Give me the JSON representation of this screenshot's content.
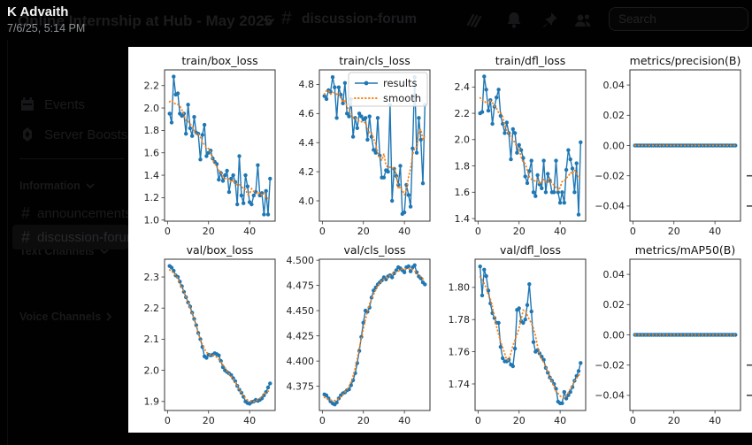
{
  "message": {
    "author": "K Advaith",
    "timestamp": "7/6/25, 5:14 PM"
  },
  "header": {
    "server_name": "Online Internship at Hub - May 2025",
    "channel_hash": "#",
    "channel_name": "discussion-forum",
    "search_placeholder": "Search",
    "icons": [
      "threads-icon",
      "notifications-bell-icon",
      "pin-icon",
      "members-icon"
    ]
  },
  "sidebar": {
    "nav_items": [
      {
        "label": "Events",
        "icon": "calendar-icon"
      },
      {
        "label": "Server Boosts",
        "icon": "boost-icon"
      }
    ],
    "categories": [
      {
        "label": "Information",
        "chevron": "down"
      },
      {
        "label": "Text Channels",
        "chevron": "down"
      },
      {
        "label": "Voice Channels",
        "chevron": "right"
      }
    ],
    "channels": [
      {
        "hash": "#",
        "name": "announcements",
        "selected": false
      },
      {
        "hash": "#",
        "name": "discussion-forum",
        "selected": true
      }
    ]
  },
  "legend": {
    "results_label": "results",
    "smooth_label": "smooth"
  },
  "colors": {
    "results": "#1f77b4",
    "smooth": "#ff7f0e"
  },
  "chart_data": [
    {
      "type": "line",
      "title": "train/box_loss",
      "x_start": 1,
      "xlim": [
        -1.45,
        52.45
      ],
      "ylim": [
        0.99,
        2.34
      ],
      "xticks": [
        "0",
        "20",
        "40"
      ],
      "yticks": [
        "1.0",
        "1.2",
        "1.4",
        "1.6",
        "1.8",
        "2.0",
        "2.2"
      ],
      "legend": false,
      "values": [
        1.95,
        1.87,
        2.28,
        2.12,
        2.13,
        1.95,
        1.93,
        1.95,
        1.77,
        2.03,
        1.82,
        1.75,
        1.92,
        1.78,
        1.77,
        1.54,
        1.76,
        1.85,
        1.57,
        1.6,
        1.62,
        1.55,
        1.52,
        1.5,
        1.36,
        1.42,
        1.35,
        1.4,
        1.44,
        1.25,
        1.37,
        1.4,
        1.34,
        1.14,
        1.57,
        1.22,
        1.15,
        1.4,
        1.3,
        1.16,
        1.14,
        1.22,
        1.25,
        1.49,
        1.22,
        1.24,
        1.05,
        1.26,
        1.05,
        1.37
      ]
    },
    {
      "type": "line",
      "title": "train/cls_loss",
      "x_start": 1,
      "xlim": [
        -1.45,
        52.45
      ],
      "ylim": [
        3.86,
        4.9
      ],
      "xticks": [
        "0",
        "20",
        "40"
      ],
      "yticks": [
        "4.0",
        "4.2",
        "4.4",
        "4.6",
        "4.8"
      ],
      "legend": true,
      "values": [
        4.72,
        4.7,
        4.76,
        4.75,
        4.85,
        4.78,
        4.57,
        4.78,
        4.73,
        4.67,
        4.81,
        4.6,
        4.58,
        4.7,
        4.44,
        4.57,
        4.5,
        4.6,
        4.58,
        4.56,
        4.57,
        4.42,
        4.58,
        4.44,
        4.35,
        4.33,
        4.57,
        4.31,
        4.16,
        4.16,
        4.21,
        4.2,
        4.66,
        4.0,
        4.22,
        4.17,
        4.11,
        4.24,
        3.91,
        3.92,
        4.11,
        4.04,
        3.96,
        4.36,
        4.85,
        4.33,
        4.57,
        4.42,
        4.12,
        4.66
      ]
    },
    {
      "type": "line",
      "title": "train/dfl_loss",
      "x_start": 1,
      "xlim": [
        -1.45,
        52.45
      ],
      "ylim": [
        1.38,
        2.53
      ],
      "xticks": [
        "0",
        "20",
        "40"
      ],
      "yticks": [
        "1.4",
        "1.6",
        "1.8",
        "2.0",
        "2.2",
        "2.4"
      ],
      "legend": false,
      "values": [
        2.2,
        2.21,
        2.48,
        2.38,
        2.22,
        2.3,
        2.12,
        2.25,
        2.32,
        2.38,
        2.18,
        2.12,
        2.05,
        2.13,
        2.05,
        1.85,
        2.08,
        2.05,
        1.9,
        1.96,
        1.92,
        1.86,
        1.72,
        1.67,
        1.76,
        1.84,
        1.6,
        1.57,
        1.73,
        1.66,
        1.63,
        1.84,
        1.6,
        1.74,
        1.69,
        1.6,
        1.6,
        1.84,
        1.6,
        1.52,
        1.6,
        1.52,
        1.77,
        1.92,
        1.85,
        1.78,
        1.6,
        1.82,
        1.43,
        1.98
      ]
    },
    {
      "type": "line",
      "title": "metrics/precision(B)",
      "x_start": 1,
      "xlim": [
        -1.45,
        52.45
      ],
      "ylim": [
        -0.05,
        0.05
      ],
      "xticks": [
        "0",
        "20",
        "40"
      ],
      "yticks": [
        "−0.04",
        "−0.02",
        "0.00",
        "0.02",
        "0.04"
      ],
      "legend": false,
      "values": [
        0,
        0,
        0,
        0,
        0,
        0,
        0,
        0,
        0,
        0,
        0,
        0,
        0,
        0,
        0,
        0,
        0,
        0,
        0,
        0,
        0,
        0,
        0,
        0,
        0,
        0,
        0,
        0,
        0,
        0,
        0,
        0,
        0,
        0,
        0,
        0,
        0,
        0,
        0,
        0,
        0,
        0,
        0,
        0,
        0,
        0,
        0,
        0,
        0,
        0
      ]
    },
    {
      "type": "line",
      "title": "val/box_loss",
      "x_start": 1,
      "xlim": [
        -1.45,
        52.45
      ],
      "ylim": [
        1.871,
        2.357
      ],
      "xticks": [
        "0",
        "20",
        "40"
      ],
      "yticks": [
        "1.9",
        "2.0",
        "2.1",
        "2.2",
        "2.3"
      ],
      "legend": false,
      "values": [
        2.335,
        2.33,
        2.32,
        2.305,
        2.3,
        2.285,
        2.27,
        2.252,
        2.235,
        2.218,
        2.205,
        2.185,
        2.165,
        2.145,
        2.12,
        2.1,
        2.075,
        2.045,
        2.04,
        2.05,
        2.048,
        2.05,
        2.055,
        2.052,
        2.048,
        2.03,
        2.01,
        2.0,
        1.995,
        1.99,
        1.985,
        1.975,
        1.965,
        1.95,
        1.938,
        1.928,
        1.915,
        1.9,
        1.895,
        1.893,
        1.898,
        1.9,
        1.905,
        1.902,
        1.905,
        1.91,
        1.92,
        1.93,
        1.945,
        1.958
      ]
    },
    {
      "type": "line",
      "title": "val/cls_loss",
      "x_start": 1,
      "xlim": [
        -1.45,
        52.45
      ],
      "ylim": [
        4.351,
        4.501
      ],
      "xticks": [
        "0",
        "20",
        "40"
      ],
      "yticks": [
        "4.375",
        "4.400",
        "4.425",
        "4.450",
        "4.475",
        "4.500"
      ],
      "legend": false,
      "values": [
        4.367,
        4.366,
        4.363,
        4.36,
        4.358,
        4.357,
        4.359,
        4.363,
        4.366,
        4.368,
        4.369,
        4.371,
        4.372,
        4.376,
        4.381,
        4.388,
        4.398,
        4.41,
        4.424,
        4.438,
        4.45,
        4.449,
        4.453,
        4.463,
        4.47,
        4.473,
        4.476,
        4.478,
        4.48,
        4.483,
        4.481,
        4.484,
        4.485,
        4.483,
        4.487,
        4.49,
        4.493,
        4.492,
        4.49,
        4.488,
        4.493,
        4.494,
        4.489,
        4.493,
        4.495,
        4.488,
        4.484,
        4.482,
        4.478,
        4.476
      ]
    },
    {
      "type": "line",
      "title": "val/dfl_loss",
      "x_start": 1,
      "xlim": [
        -1.45,
        52.45
      ],
      "ylim": [
        1.7235,
        1.8175
      ],
      "xticks": [
        "0",
        "20",
        "40"
      ],
      "yticks": [
        "1.74",
        "1.76",
        "1.78",
        "1.80"
      ],
      "legend": false,
      "values": [
        1.813,
        1.795,
        1.811,
        1.807,
        1.798,
        1.79,
        1.784,
        1.781,
        1.778,
        1.778,
        1.763,
        1.756,
        1.754,
        1.754,
        1.755,
        1.752,
        1.751,
        1.762,
        1.786,
        1.787,
        1.779,
        1.778,
        1.78,
        1.789,
        1.802,
        1.785,
        1.766,
        1.76,
        1.761,
        1.759,
        1.757,
        1.755,
        1.75,
        1.747,
        1.744,
        1.742,
        1.74,
        1.737,
        1.729,
        1.728,
        1.728,
        1.735,
        1.731,
        1.733,
        1.735,
        1.738,
        1.742,
        1.745,
        1.748,
        1.753
      ]
    },
    {
      "type": "line",
      "title": "metrics/mAP50(B)",
      "x_start": 1,
      "xlim": [
        -1.45,
        52.45
      ],
      "ylim": [
        -0.05,
        0.05
      ],
      "xticks": [
        "0",
        "20",
        "40"
      ],
      "yticks": [
        "−0.04",
        "−0.02",
        "0.00",
        "0.02",
        "0.04"
      ],
      "legend": false,
      "values": [
        0,
        0,
        0,
        0,
        0,
        0,
        0,
        0,
        0,
        0,
        0,
        0,
        0,
        0,
        0,
        0,
        0,
        0,
        0,
        0,
        0,
        0,
        0,
        0,
        0,
        0,
        0,
        0,
        0,
        0,
        0,
        0,
        0,
        0,
        0,
        0,
        0,
        0,
        0,
        0,
        0,
        0,
        0,
        0,
        0,
        0,
        0,
        0,
        0,
        0
      ]
    }
  ]
}
